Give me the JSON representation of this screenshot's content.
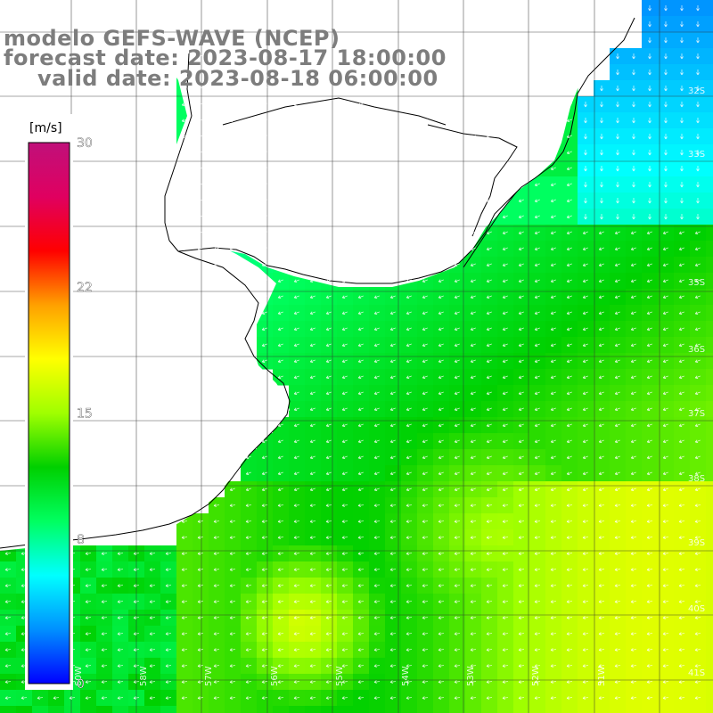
{
  "title": {
    "line1": "modelo GEFS-WAVE (NCEP)",
    "line2": "forecast date: 2023-08-17 18:00:00",
    "line3": "valid date: 2023-08-18 06:00:00"
  },
  "colorbar": {
    "unit": "[m/s]",
    "ticks": [
      "30",
      "22",
      "15",
      "8",
      "0"
    ],
    "tick_values": [
      30,
      22,
      15,
      8,
      0
    ],
    "colors": [
      "#0000ff",
      "#0090ff",
      "#00ffff",
      "#00ff60",
      "#00d000",
      "#a0ff00",
      "#ffff00",
      "#ffa000",
      "#ff0000",
      "#e00060",
      "#c0107a"
    ]
  },
  "lat_labels": [
    "32S",
    "33S",
    "35S",
    "36S",
    "37S",
    "38S",
    "39S",
    "40S",
    "41S"
  ],
  "lon_labels": [
    "60W",
    "58W",
    "57W",
    "56W",
    "55W",
    "54W",
    "53W",
    "52W",
    "51W"
  ],
  "colors": {
    "land": "#ffffff",
    "grid": "#000000",
    "title": "#7d7d7d",
    "arrows": "#ffffff"
  }
}
